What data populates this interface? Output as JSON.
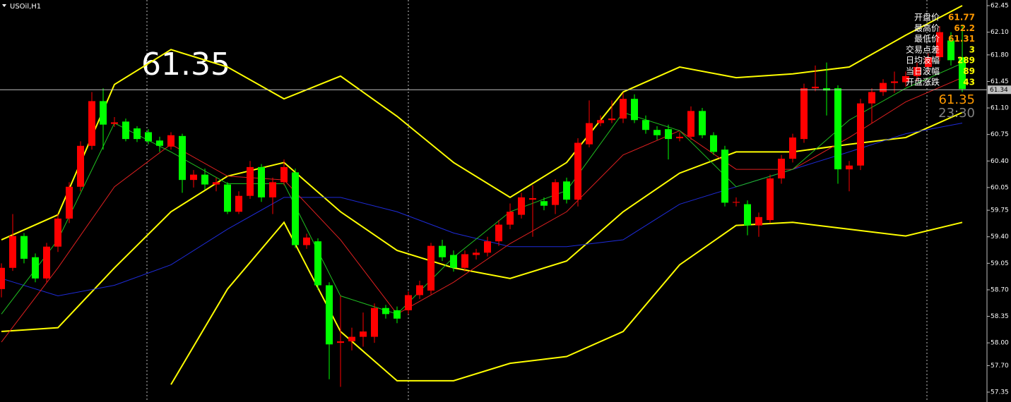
{
  "chart_data": {
    "type": "candlestick",
    "title": "USOil,H1",
    "big_price": 61.35,
    "bid": 61.35,
    "timer": "23:30",
    "current_price": 61.34,
    "up_color": "#ff0000",
    "down_color": "#00ff00",
    "ylim": [
      57.35,
      62.45
    ],
    "yticks": [
      62.45,
      {
        "value": 62.1,
        "label": "62.10"
      },
      {
        "value": 61.8,
        "label": "61.80"
      },
      61.45,
      {
        "value": 61.1,
        "label": "61.10"
      },
      60.75,
      {
        "value": 60.4,
        "label": "60.40"
      },
      60.05,
      59.75,
      {
        "value": 59.4,
        "label": "59.40"
      },
      59.05,
      {
        "value": 58.7,
        "label": "58.70"
      },
      58.35,
      {
        "value": 58,
        "label": "58.00"
      },
      {
        "value": 57.7,
        "label": "57.70"
      },
      57.35
    ],
    "open": [
      58.71,
      58.99,
      59.41,
      59.13,
      58.85,
      59.27,
      59.64,
      60.06,
      60.6,
      61.19,
      60.89,
      60.92,
      60.83,
      60.78,
      60.67,
      60.59,
      60.73,
      60.15,
      60.22,
      60.09,
      60.09,
      59.73,
      59.94,
      60.32,
      59.92,
      60.12,
      60.25,
      59.29,
      59.34,
      58.76,
      58.0,
      58.02,
      58.08,
      58.08,
      58.46,
      58.43,
      58.43,
      58.63,
      58.69,
      59.28,
      59.16,
      58.99,
      59.16,
      59.19,
      59.34,
      59.56,
      59.69,
      59.89,
      59.87,
      59.82,
      60.13,
      59.89,
      60.62,
      60.9,
      60.94,
      60.96,
      61.22,
      60.94,
      60.81,
      60.82,
      60.7,
      60.72,
      61.06,
      60.74,
      60.55,
      59.85,
      59.83,
      59.55,
      59.62,
      60.17,
      60.43,
      60.69,
      61.36,
      61.36,
      61.36,
      60.29,
      60.34,
      61.16,
      61.31,
      61.43,
      61.44,
      61.52,
      61.64,
      61.77,
      61.99,
      61.77
    ],
    "close": [
      58.99,
      59.41,
      59.11,
      58.85,
      59.27,
      59.64,
      60.06,
      60.6,
      61.19,
      60.88,
      60.91,
      60.69,
      60.69,
      60.66,
      60.6,
      60.74,
      60.15,
      60.22,
      60.09,
      60.12,
      59.73,
      59.94,
      60.32,
      59.92,
      60.12,
      60.32,
      59.29,
      59.39,
      58.76,
      57.98,
      58.02,
      58.08,
      58.15,
      58.46,
      58.38,
      58.32,
      58.63,
      58.76,
      59.28,
      59.13,
      58.99,
      59.17,
      59.19,
      59.34,
      59.56,
      59.73,
      59.92,
      59.91,
      59.81,
      60.12,
      59.89,
      60.64,
      60.9,
      60.94,
      60.96,
      61.22,
      60.94,
      60.81,
      60.74,
      60.69,
      60.72,
      61.06,
      60.74,
      60.52,
      59.85,
      59.86,
      59.55,
      59.66,
      60.17,
      60.43,
      60.71,
      61.36,
      61.38,
      61.33,
      60.29,
      60.34,
      61.16,
      61.31,
      61.43,
      61.45,
      61.52,
      61.64,
      61.77,
      62.1,
      61.73,
      61.35
    ],
    "high": [
      59.05,
      59.7,
      59.45,
      59.18,
      59.32,
      59.7,
      60.12,
      60.66,
      61.31,
      61.36,
      60.98,
      60.96,
      60.86,
      60.82,
      60.72,
      60.78,
      60.76,
      60.28,
      60.3,
      60.18,
      60.12,
      60.0,
      60.4,
      60.36,
      60.18,
      60.42,
      60.3,
      59.44,
      59.38,
      58.8,
      58.62,
      58.2,
      58.4,
      58.52,
      58.5,
      58.48,
      58.68,
      58.82,
      59.32,
      59.36,
      59.22,
      59.22,
      59.24,
      59.4,
      59.62,
      59.84,
      59.98,
      60.08,
      59.92,
      60.16,
      60.18,
      60.7,
      61.2,
      61.0,
      61.2,
      61.3,
      61.28,
      61.0,
      60.86,
      60.88,
      60.78,
      61.12,
      61.1,
      60.78,
      60.6,
      59.92,
      59.88,
      59.72,
      60.22,
      60.48,
      60.76,
      61.42,
      61.66,
      61.7,
      61.4,
      60.4,
      61.22,
      61.36,
      61.48,
      61.58,
      61.58,
      61.7,
      61.82,
      62.18,
      62.1,
      62.2
    ],
    "low": [
      58.6,
      58.95,
      59.05,
      58.8,
      58.8,
      59.2,
      59.58,
      60.0,
      60.55,
      60.55,
      60.85,
      60.66,
      60.65,
      60.62,
      60.52,
      60.55,
      59.98,
      60.05,
      60.02,
      60.0,
      59.7,
      59.7,
      59.9,
      59.86,
      59.7,
      60.08,
      59.25,
      59.24,
      58.7,
      57.52,
      57.42,
      57.9,
      57.95,
      58.0,
      58.32,
      58.26,
      58.38,
      58.58,
      58.64,
      59.08,
      58.94,
      58.94,
      59.1,
      59.14,
      59.28,
      59.5,
      59.64,
      59.4,
      59.75,
      59.7,
      59.84,
      59.8,
      60.58,
      60.86,
      60.9,
      60.9,
      60.9,
      60.76,
      60.68,
      60.42,
      60.66,
      60.68,
      60.7,
      60.48,
      59.8,
      59.8,
      59.42,
      59.4,
      59.58,
      60.1,
      60.38,
      60.64,
      61.32,
      61.0,
      60.1,
      60.0,
      60.28,
      60.9,
      61.26,
      61.3,
      61.38,
      61.46,
      61.58,
      61.72,
      61.66,
      61.31
    ],
    "series": [
      {
        "color": "#ffff00",
        "x": [
          0,
          5,
          10,
          15,
          20,
          25,
          30,
          35,
          40,
          45,
          50,
          55,
          60,
          65,
          70,
          75,
          80,
          85
        ],
        "values": [
          59.36,
          59.69,
          61.41,
          61.87,
          61.64,
          61.22,
          61.52,
          60.99,
          60.38,
          59.92,
          60.38,
          61.31,
          61.64,
          61.5,
          61.55,
          61.64,
          62.06,
          62.45
        ]
      },
      {
        "color": "#ffff00",
        "x": [
          0,
          5,
          10,
          15,
          20,
          25,
          30,
          35,
          40,
          45,
          50,
          55,
          60,
          65,
          70,
          75,
          80,
          85
        ],
        "values": [
          58.15,
          58.2,
          58.99,
          59.73,
          60.2,
          60.38,
          59.73,
          59.22,
          58.99,
          58.85,
          59.08,
          59.73,
          60.24,
          60.52,
          60.52,
          60.62,
          60.71,
          61.04
        ]
      },
      {
        "color": "#ffff00",
        "x": [
          15,
          20,
          25,
          30,
          35,
          40,
          45,
          50,
          55,
          60,
          65,
          70,
          75,
          80,
          85
        ],
        "values": [
          57.45,
          58.71,
          59.59,
          58.15,
          57.5,
          57.5,
          57.73,
          57.82,
          58.15,
          59.03,
          59.55,
          59.59,
          59.5,
          59.41,
          59.59
        ]
      },
      {
        "color": "#1e2bd8",
        "x": [
          0,
          5,
          10,
          15,
          20,
          25,
          30,
          35,
          40,
          45,
          50,
          55,
          60,
          65,
          70,
          75,
          80,
          85
        ],
        "values": [
          58.85,
          58.62,
          58.76,
          59.03,
          59.5,
          59.92,
          59.92,
          59.73,
          59.45,
          59.27,
          59.27,
          59.36,
          59.83,
          60.06,
          60.29,
          60.52,
          60.76,
          60.9
        ]
      },
      {
        "color": "#e02020",
        "x": [
          0,
          5,
          10,
          15,
          20,
          25,
          30,
          35,
          40,
          45,
          50,
          55,
          60,
          65,
          70,
          75,
          80,
          85
        ],
        "values": [
          58.01,
          58.99,
          60.06,
          60.62,
          60.2,
          60.15,
          59.36,
          58.38,
          58.8,
          59.31,
          59.73,
          60.48,
          60.8,
          60.29,
          60.29,
          60.71,
          61.18,
          61.5
        ]
      },
      {
        "color": "#20c020",
        "x": [
          0,
          5,
          10,
          15,
          20,
          25,
          30,
          35,
          40,
          45,
          50,
          55,
          60,
          65,
          70,
          75,
          80,
          85
        ],
        "values": [
          58.38,
          59.36,
          60.9,
          60.52,
          60.1,
          60.1,
          58.62,
          58.38,
          59.13,
          59.73,
          60.01,
          61.04,
          60.8,
          60.06,
          60.29,
          60.94,
          61.36,
          61.69
        ]
      }
    ]
  },
  "info_panel": [
    {
      "label": "开盘价",
      "value": 61.77
    },
    {
      "label": "最高价",
      "value": 62.2
    },
    {
      "label": "最低价",
      "value": 61.31
    },
    {
      "label": "交易点差",
      "value": 3
    },
    {
      "label": "日均波幅",
      "value": 289
    },
    {
      "label": "当日波幅",
      "value": 89
    },
    {
      "label": "开盘涨跌",
      "value": 43
    }
  ]
}
